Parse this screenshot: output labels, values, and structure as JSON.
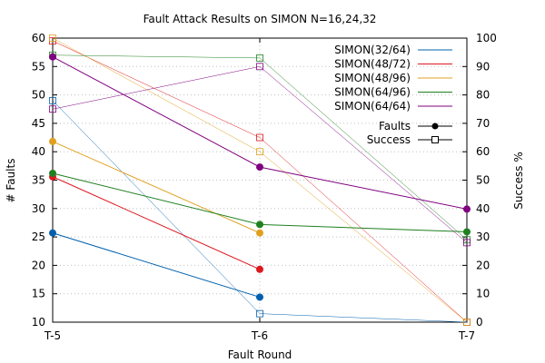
{
  "chart_data": {
    "type": "line",
    "title": "Fault Attack Results on SIMON N=16,24,32",
    "xlabel": "Fault Round",
    "ylabel_left": "# Faults",
    "ylabel_right": "Success %",
    "categories": [
      "T-5",
      "T-6",
      "T-7"
    ],
    "ylim_left": [
      10,
      60
    ],
    "yticks_left": [
      10,
      15,
      20,
      25,
      30,
      35,
      40,
      45,
      50,
      55,
      60
    ],
    "ylim_right": [
      0,
      100
    ],
    "yticks_right": [
      0,
      10,
      20,
      30,
      40,
      50,
      60,
      70,
      80,
      90,
      100
    ],
    "grid": true,
    "legend_position": "top-right",
    "legend_style": [
      {
        "label": "Faults",
        "marker": "filled-circle"
      },
      {
        "label": "Success",
        "marker": "open-square"
      }
    ],
    "series": [
      {
        "name": "SIMON(32/64)",
        "color": "#0060ad",
        "faults": [
          25.7,
          14.4,
          null
        ],
        "success": [
          78,
          3,
          0
        ]
      },
      {
        "name": "SIMON(48/72)",
        "color": "#dd181f",
        "faults": [
          35.6,
          19.3,
          null
        ],
        "success": [
          99,
          65,
          0
        ]
      },
      {
        "name": "SIMON(48/96)",
        "color": "#e0a020",
        "faults": [
          41.8,
          25.7,
          null
        ],
        "success": [
          100,
          60,
          0
        ]
      },
      {
        "name": "SIMON(64/96)",
        "color": "#208020",
        "faults": [
          36.2,
          27.2,
          25.9
        ],
        "success": [
          94,
          93,
          29
        ]
      },
      {
        "name": "SIMON(64/64)",
        "color": "#800080",
        "faults": [
          56.7,
          37.3,
          29.9
        ],
        "success": [
          75,
          90,
          28
        ]
      }
    ]
  }
}
